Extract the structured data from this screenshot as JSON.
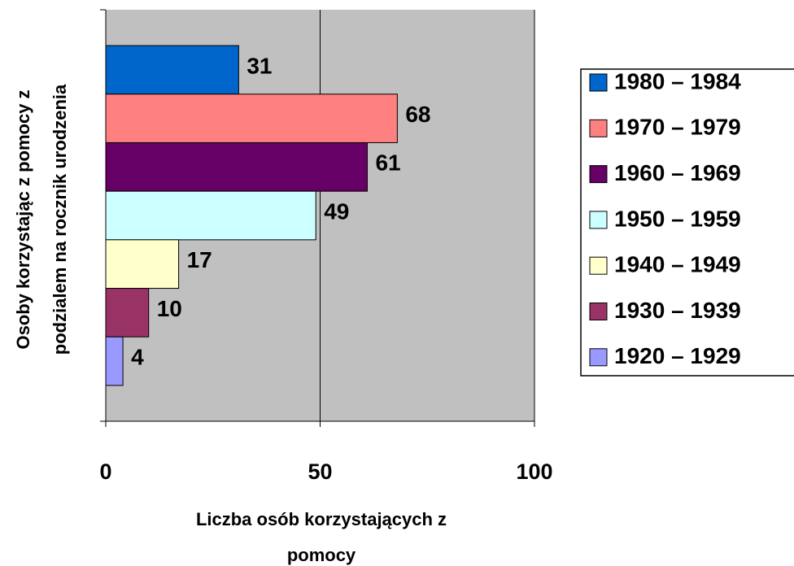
{
  "chart_data": {
    "type": "bar",
    "orientation": "horizontal",
    "ylabel": [
      "Osoby korzystając z pomocy z",
      "podzialem na rocznik urodzenia"
    ],
    "xlabel": [
      "Liczba osób korzystających z",
      "pomocy"
    ],
    "categories": [
      null
    ],
    "series": [
      {
        "name": "1980 – 1984",
        "color": "#0066cc",
        "values": [
          31
        ]
      },
      {
        "name": "1970 – 1979",
        "color": "#ff8080",
        "values": [
          68
        ]
      },
      {
        "name": "1960 – 1969",
        "color": "#660066",
        "values": [
          61
        ]
      },
      {
        "name": "1950 – 1959",
        "color": "#ccffff",
        "values": [
          49
        ]
      },
      {
        "name": "1940 – 1949",
        "color": "#ffffcc",
        "values": [
          17
        ]
      },
      {
        "name": "1930 – 1939",
        "color": "#993366",
        "values": [
          10
        ]
      },
      {
        "name": "1920 – 1929",
        "color": "#9999ff",
        "values": [
          4
        ]
      }
    ],
    "xlim": [
      0,
      100
    ],
    "xticks": [
      0,
      50,
      100
    ],
    "grid": true,
    "legend": "right"
  }
}
